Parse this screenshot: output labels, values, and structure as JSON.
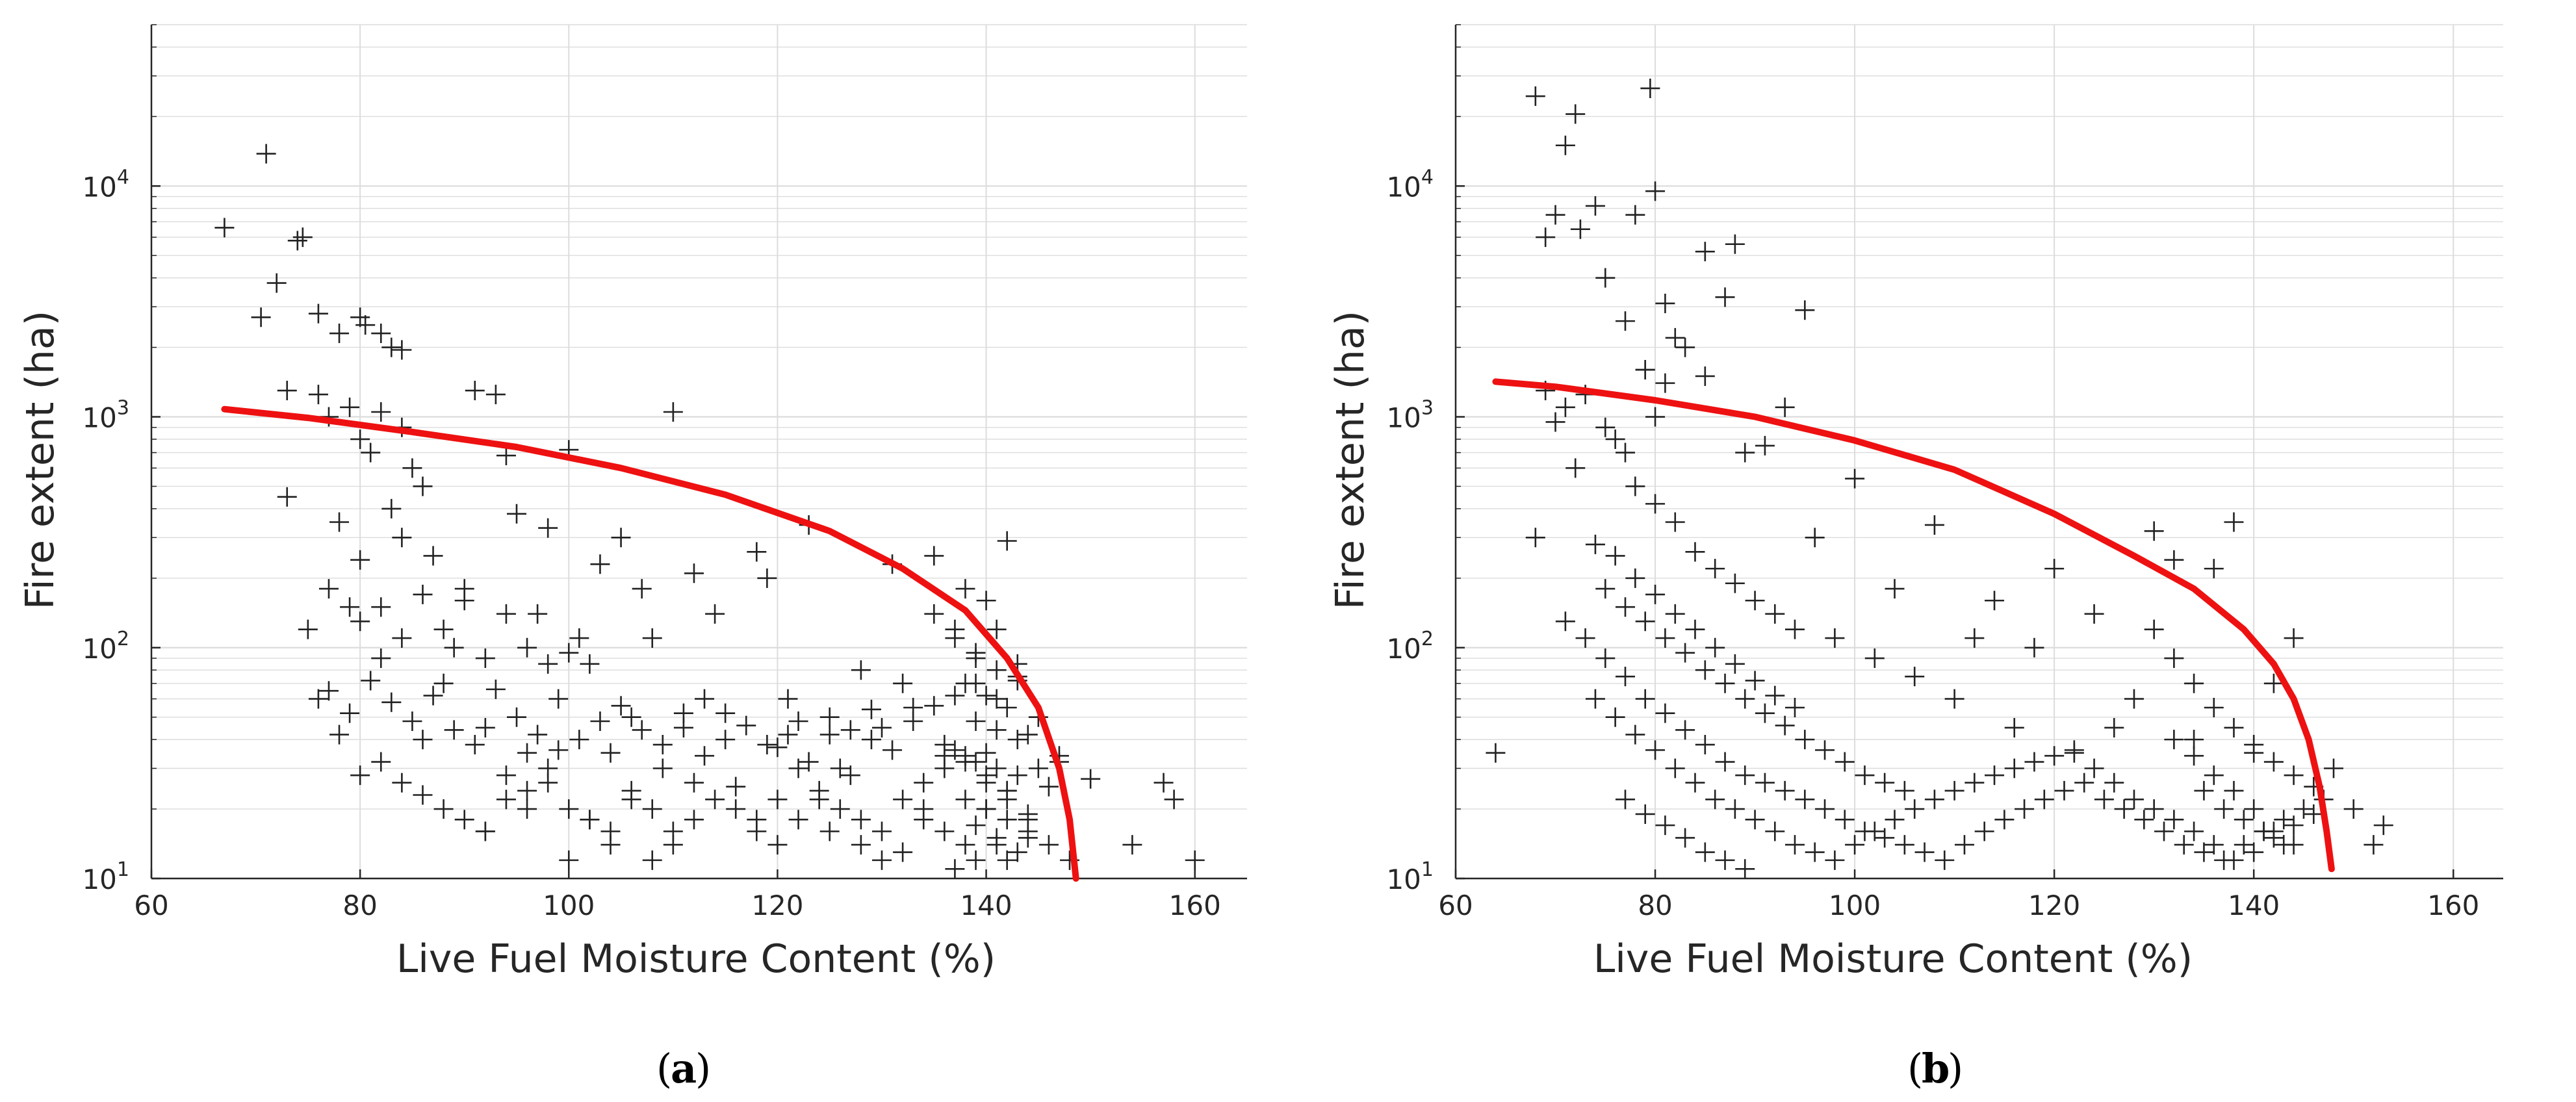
{
  "figure": {
    "panel_labels": [
      "a",
      "b"
    ],
    "marker_color": "#222222",
    "fit_color": "#ee1111",
    "grid_color": "#dcdcdc"
  },
  "chart_data": [
    {
      "type": "scatter",
      "panel": "a",
      "xlabel": "Live Fuel Moisture Content (%)",
      "ylabel": "Fire extent (ha)",
      "xlim": [
        60,
        165
      ],
      "ylim": [
        10,
        50000
      ],
      "yscale": "log",
      "grid": true,
      "xticks": [
        "60",
        "80",
        "100",
        "120",
        "140",
        "160"
      ],
      "yticks": [
        "10",
        "100",
        "1000",
        "10000"
      ],
      "marker": "plus",
      "fit_curve": {
        "x": [
          67,
          75,
          85,
          95,
          105,
          115,
          125,
          132,
          138,
          142,
          145,
          147,
          148,
          148.6
        ],
        "y": [
          1080,
          990,
          860,
          740,
          600,
          460,
          320,
          220,
          145,
          90,
          55,
          30,
          18,
          10
        ]
      },
      "points": {
        "x": [
          67,
          71,
          70.5,
          72,
          74,
          74.5,
          76,
          78,
          80,
          80.5,
          82,
          83,
          84,
          73,
          76,
          77,
          79,
          80,
          82,
          84,
          86,
          73,
          75,
          76,
          77,
          78,
          79,
          80,
          81,
          82,
          83,
          84,
          85,
          86,
          87,
          88,
          89,
          90,
          91,
          92,
          93,
          94,
          95,
          96,
          97,
          98,
          99,
          100,
          101,
          102,
          103,
          104,
          105,
          106,
          107,
          108,
          109,
          110,
          111,
          112,
          113,
          114,
          115,
          116,
          118,
          119,
          120,
          121,
          122,
          123,
          124,
          125,
          126,
          127,
          128,
          129,
          130,
          131,
          132,
          133,
          134,
          135,
          136,
          137,
          138,
          139,
          140,
          141,
          142,
          143,
          144,
          145,
          146,
          147,
          150,
          154,
          157,
          158,
          160,
          92,
          94,
          96,
          98,
          100,
          102,
          104,
          106,
          108,
          110,
          112,
          118,
          120,
          122,
          125,
          128,
          130,
          132,
          134,
          136,
          138,
          140,
          142,
          144,
          78,
          80,
          82,
          84,
          86,
          88,
          90,
          92,
          94,
          96,
          98,
          100,
          102,
          104,
          106,
          108,
          110,
          112,
          114,
          116,
          118,
          120,
          122,
          124,
          126,
          128,
          130,
          132,
          134,
          136,
          138,
          140,
          142,
          144,
          146,
          148,
          77,
          79,
          81,
          83,
          85,
          87,
          89,
          91,
          93,
          95,
          97,
          99,
          101,
          103,
          105,
          107,
          109,
          111,
          113,
          115,
          117,
          119,
          121,
          123,
          125,
          127,
          129,
          131,
          133,
          135,
          137,
          139,
          141,
          143,
          145,
          147,
          80,
          82,
          84,
          86,
          88,
          90,
          92,
          94,
          96,
          98,
          100,
          135,
          137,
          139,
          141,
          143,
          138,
          140,
          142,
          139,
          141,
          143,
          137,
          139,
          141,
          143,
          140,
          142,
          138,
          140,
          142,
          144,
          136,
          138,
          140,
          142,
          144,
          139,
          141,
          143,
          137,
          139,
          141
        ],
        "y": [
          6600,
          13800,
          2700,
          3800,
          5800,
          6000,
          2800,
          2300,
          2700,
          2500,
          2300,
          2000,
          1950,
          1300,
          1250,
          1000,
          1100,
          800,
          1050,
          900,
          500,
          450,
          120,
          60,
          180,
          350,
          150,
          240,
          700,
          90,
          400,
          300,
          600,
          40,
          250,
          70,
          100,
          180,
          1300,
          45,
          1250,
          680,
          380,
          20,
          140,
          330,
          60,
          720,
          110,
          85,
          230,
          35,
          300,
          50,
          180,
          110,
          30,
          1050,
          45,
          210,
          60,
          140,
          52,
          25,
          260,
          200,
          37,
          60,
          48,
          340,
          22,
          42,
          30,
          28,
          80,
          54,
          45,
          230,
          70,
          55,
          20,
          250,
          34,
          120,
          180,
          90,
          160,
          60,
          290,
          75,
          42,
          30,
          25,
          34,
          27,
          14,
          26,
          22,
          12,
          16,
          22,
          35,
          26,
          12,
          18,
          14,
          22,
          12,
          16,
          26,
          18,
          22,
          30,
          16,
          14,
          12,
          13,
          18,
          16,
          14,
          20,
          12,
          15,
          42,
          28,
          32,
          26,
          23,
          20,
          18,
          16,
          28,
          24,
          30,
          20,
          18,
          16,
          24,
          20,
          14,
          18,
          22,
          20,
          16,
          14,
          18,
          24,
          20,
          18,
          16,
          22,
          26,
          30,
          32,
          35,
          24,
          18,
          14,
          12,
          65,
          52,
          72,
          58,
          48,
          62,
          44,
          38,
          66,
          50,
          42,
          36,
          40,
          48,
          56,
          44,
          38,
          52,
          34,
          40,
          46,
          38,
          42,
          32,
          50,
          44,
          40,
          36,
          48,
          56,
          62,
          70,
          80,
          72,
          50,
          32,
          130,
          150,
          110,
          170,
          120,
          160,
          90,
          140,
          100,
          85,
          95,
          140,
          110,
          95,
          120,
          85,
          70,
          62,
          55,
          48,
          44,
          40,
          36,
          32,
          30,
          28,
          26,
          24,
          22,
          20,
          18,
          16,
          38,
          34,
          28,
          22,
          19,
          17,
          15,
          13,
          11,
          12,
          14
        ]
      }
    },
    {
      "type": "scatter",
      "panel": "b",
      "xlabel": "Live Fuel Moisture Content (%)",
      "ylabel": "Fire extent (ha)",
      "xlim": [
        60,
        165
      ],
      "ylim": [
        10,
        50000
      ],
      "yscale": "log",
      "grid": true,
      "xticks": [
        "60",
        "80",
        "100",
        "120",
        "140",
        "160"
      ],
      "yticks": [
        "10",
        "100",
        "1000",
        "10000"
      ],
      "marker": "plus",
      "fit_curve": {
        "x": [
          64,
          70,
          80,
          90,
          100,
          110,
          120,
          128,
          134,
          139,
          142,
          144,
          145.5,
          146.6,
          147.3,
          147.8
        ],
        "y": [
          1420,
          1350,
          1180,
          1000,
          790,
          590,
          380,
          250,
          180,
          120,
          85,
          60,
          40,
          25,
          16,
          11
        ]
      },
      "points": {
        "x": [
          64,
          68,
          69,
          70,
          71,
          72,
          72.5,
          74,
          75,
          77,
          78,
          79,
          79.5,
          80,
          81,
          82,
          85,
          88,
          95,
          69,
          71,
          73,
          75,
          77,
          79,
          80,
          81,
          83,
          85,
          87,
          89,
          91,
          93,
          68,
          70,
          72,
          74,
          76,
          78,
          80,
          82,
          84,
          86,
          88,
          90,
          92,
          94,
          96,
          98,
          100,
          102,
          104,
          106,
          108,
          110,
          112,
          114,
          116,
          118,
          120,
          122,
          124,
          126,
          128,
          130,
          132,
          134,
          136,
          138,
          140,
          142,
          144,
          146,
          148,
          150,
          152,
          153,
          71,
          73,
          75,
          77,
          79,
          81,
          83,
          85,
          87,
          89,
          91,
          93,
          95,
          97,
          99,
          101,
          103,
          105,
          107,
          109,
          111,
          113,
          115,
          117,
          119,
          121,
          123,
          125,
          127,
          129,
          131,
          133,
          135,
          137,
          139,
          141,
          143,
          145,
          147,
          74,
          76,
          78,
          80,
          82,
          84,
          86,
          88,
          90,
          92,
          94,
          96,
          98,
          100,
          102,
          104,
          106,
          108,
          110,
          112,
          114,
          116,
          118,
          120,
          122,
          124,
          126,
          128,
          130,
          132,
          134,
          136,
          138,
          140,
          142,
          144,
          146,
          75,
          77,
          79,
          81,
          83,
          85,
          87,
          89,
          91,
          93,
          95,
          97,
          99,
          101,
          103,
          105,
          76,
          78,
          80,
          82,
          84,
          86,
          88,
          90,
          92,
          94,
          130,
          132,
          134,
          136,
          138,
          140,
          142,
          144,
          135,
          137,
          139,
          141,
          143,
          132,
          134,
          136,
          138,
          140,
          142,
          144,
          77,
          79,
          81,
          83,
          85,
          87,
          89
        ],
        "y": [
          35,
          24500,
          6000,
          7500,
          15000,
          20500,
          6500,
          8200,
          4000,
          2600,
          7500,
          1600,
          26500,
          9500,
          3100,
          2200,
          5200,
          5600,
          2900,
          1300,
          1100,
          1250,
          900,
          700,
          1600,
          1000,
          1400,
          2000,
          1500,
          3300,
          700,
          750,
          1100,
          300,
          950,
          600,
          280,
          800,
          500,
          420,
          350,
          260,
          220,
          190,
          160,
          140,
          120,
          300,
          110,
          540,
          90,
          180,
          75,
          340,
          60,
          110,
          160,
          45,
          100,
          220,
          35,
          140,
          45,
          60,
          320,
          240,
          40,
          220,
          350,
          35,
          70,
          110,
          25,
          30,
          20,
          14,
          17,
          130,
          110,
          90,
          75,
          60,
          52,
          44,
          38,
          32,
          28,
          26,
          24,
          22,
          20,
          18,
          16,
          15,
          14,
          13,
          12,
          14,
          16,
          18,
          20,
          22,
          24,
          26,
          22,
          20,
          18,
          16,
          14,
          13,
          12,
          14,
          16,
          18,
          20,
          22,
          60,
          50,
          42,
          36,
          30,
          26,
          22,
          20,
          18,
          16,
          14,
          13,
          12,
          14,
          16,
          18,
          20,
          22,
          24,
          26,
          28,
          30,
          32,
          34,
          36,
          30,
          26,
          22,
          20,
          18,
          16,
          14,
          12,
          13,
          15,
          17,
          19,
          180,
          150,
          130,
          110,
          95,
          80,
          70,
          60,
          52,
          46,
          40,
          36,
          32,
          28,
          26,
          24,
          250,
          200,
          170,
          140,
          120,
          100,
          85,
          72,
          62,
          55,
          120,
          90,
          70,
          55,
          45,
          38,
          32,
          28,
          24,
          20,
          18,
          16,
          14,
          40,
          34,
          28,
          24,
          20,
          16,
          14,
          22,
          19,
          17,
          15,
          13,
          12,
          11
        ]
      }
    }
  ]
}
